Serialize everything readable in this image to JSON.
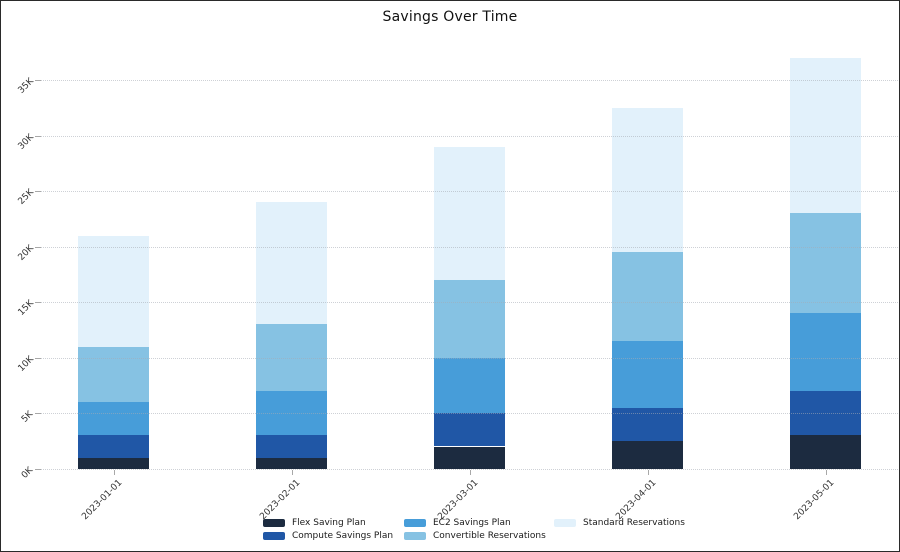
{
  "window": {
    "background": "#ffffff",
    "border_color": "#2a2a2a"
  },
  "chart_data": {
    "type": "bar",
    "stacked": true,
    "title": "Savings Over Time",
    "xlabel": "",
    "ylabel": "",
    "categories": [
      "2023-01-01",
      "2023-02-01",
      "2023-03-01",
      "2023-04-01",
      "2023-05-01"
    ],
    "series": [
      {
        "name": "Flex Saving Plan",
        "color": "#1c2b40",
        "values": [
          1000,
          1000,
          2000,
          2500,
          3000
        ]
      },
      {
        "name": "Compute Savings Plan",
        "color": "#2057a6",
        "values": [
          2000,
          2000,
          3000,
          3000,
          4000
        ]
      },
      {
        "name": "EC2 Savings Plan",
        "color": "#479dd9",
        "values": [
          3000,
          4000,
          5000,
          6000,
          7000
        ]
      },
      {
        "name": "Convertible Reservations",
        "color": "#86c2e3",
        "values": [
          5000,
          6000,
          7000,
          8000,
          9000
        ]
      },
      {
        "name": "Standard Reservations",
        "color": "#e2f1fb",
        "values": [
          10000,
          11000,
          12000,
          13000,
          14000
        ]
      }
    ],
    "stack_totals": [
      21000,
      24000,
      29000,
      32500,
      37000
    ],
    "ylim": [
      0,
      37000
    ],
    "ytick_labels": [
      "0K",
      "5K",
      "10K",
      "15K",
      "20K",
      "25K",
      "30K",
      "35K"
    ],
    "ytick_values": [
      0,
      5000,
      10000,
      15000,
      20000,
      25000,
      30000,
      35000
    ],
    "grid": "horizontal dotted",
    "tick_label_rotation": 45,
    "legend_position": "bottom-center",
    "legend_columns": [
      [
        "Flex Saving Plan",
        "Compute Savings Plan"
      ],
      [
        "EC2 Savings Plan",
        "Convertible Reservations"
      ],
      [
        "Standard Reservations"
      ]
    ]
  }
}
